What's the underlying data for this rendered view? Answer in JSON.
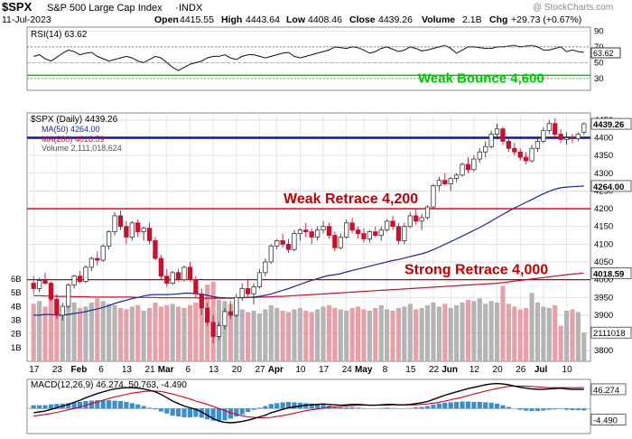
{
  "header": {
    "ticker": "$SPX",
    "name": "S&P 500 Large Cap Index",
    "exchange": "INDX",
    "watermark": "@ StockCharts.com",
    "date": "11-Jul-2023",
    "open_label": "Open",
    "open": "4415.55",
    "high_label": "High",
    "high": "4443.64",
    "low_label": "Low",
    "low": "4408.46",
    "close_label": "Close",
    "close": "4439.26",
    "volume_label": "Volume",
    "volume": "2.1B",
    "chg_label": "Chg",
    "chg": "+29.73 (+0.67%)"
  },
  "colors": {
    "up": "#2e3a3a",
    "down": "#c8102e",
    "ma50": "#1a2a8c",
    "ma200": "#c8102e",
    "blue_line": "#0a14b4",
    "green_line": "#00c800",
    "red_line": "#c00000",
    "grid": "#d8d8d8",
    "vol_up": "#b4b4b4",
    "vol_down": "#e8a0a8",
    "macd_hist": "#3a8ed0"
  },
  "chart_data": [
    {
      "type": "line",
      "panel": "rsi",
      "legend": "RSI(14) 63.62",
      "last_value_label": "63.62",
      "y_ticks": [
        30,
        50,
        70,
        90
      ],
      "y_tick_labels": [
        "30",
        "50",
        "70",
        "90"
      ],
      "ylim": [
        15,
        95
      ],
      "reference_lines": [
        {
          "value": 30,
          "label": ""
        },
        {
          "value": 50,
          "label": ""
        },
        {
          "value": 70,
          "label": ""
        },
        {
          "value": 34,
          "label": "Weak Bounce 4,600",
          "color": "green"
        }
      ],
      "values": [
        58,
        60,
        55,
        52,
        57,
        62,
        66,
        64,
        60,
        62,
        63,
        58,
        55,
        52,
        54,
        56,
        58,
        56,
        52,
        50,
        54,
        58,
        56,
        50,
        44,
        40,
        44,
        48,
        50,
        52,
        56,
        58,
        58,
        60,
        56,
        54,
        58,
        60,
        60,
        58,
        56,
        58,
        60,
        62,
        63,
        58,
        56,
        58,
        60,
        62,
        64,
        66,
        70,
        69,
        68,
        70,
        69,
        66,
        62,
        64,
        68,
        70,
        67,
        64,
        66,
        70,
        68,
        65,
        66,
        68,
        70,
        72,
        68,
        62,
        66,
        70,
        70,
        69,
        68,
        68,
        70,
        70,
        71,
        72,
        70,
        71,
        72,
        70,
        66,
        66,
        68,
        70,
        64,
        66,
        64,
        63
      ]
    },
    {
      "type": "candlestick",
      "panel": "price",
      "legend": [
        "$SPX (Daily) 4439.26",
        "MA(50) 4264.00",
        "MA(200) 4018.59",
        "Volume 2,111,018,624"
      ],
      "ylim": [
        3770,
        4470
      ],
      "y_ticks": [
        3800,
        3850,
        3900,
        3950,
        4000,
        4050,
        4100,
        4150,
        4200,
        4250,
        4300,
        4350,
        4400,
        4450
      ],
      "y_tick_labels": [
        "3800",
        "3850",
        "3900",
        "3950",
        "4000",
        "4050",
        "4100",
        "4150",
        "4200",
        "4250",
        "4300",
        "4350",
        "4400",
        "4450"
      ],
      "x_tick_labels": [
        "17",
        "23",
        "Feb",
        "6",
        "13",
        "21",
        "Mar",
        "6",
        "13",
        "20",
        "27",
        "Apr",
        "10",
        "17",
        "24",
        "May",
        "8",
        "15",
        "22",
        "Jun",
        "12",
        "20",
        "26",
        "Jul",
        "10"
      ],
      "volume_tick_labels": [
        "1B",
        "2B",
        "3B",
        "4B",
        "5B",
        "6B"
      ],
      "volume_range": [
        0,
        6.6
      ],
      "price_label": "4439.26",
      "ma50_label": "4264.00",
      "ma200_label": "4018.59",
      "volume_label": "2111018",
      "horizontal_lines": [
        {
          "value": 4400,
          "color": "blue",
          "label": ""
        },
        {
          "value": 4200,
          "color": "red",
          "label": "Weak Retrace 4,200"
        },
        {
          "value": 4000,
          "color": "red",
          "label": "Strong Retrace 4,000"
        }
      ],
      "ohlc": [
        [
          3990,
          4010,
          3960,
          3975
        ],
        [
          3975,
          4005,
          3965,
          3998
        ],
        [
          3998,
          4020,
          3985,
          3990
        ],
        [
          3990,
          3995,
          3940,
          3945
        ],
        [
          3945,
          3960,
          3890,
          3900
        ],
        [
          3900,
          3935,
          3885,
          3925
        ],
        [
          3925,
          3990,
          3920,
          3985
        ],
        [
          3985,
          4015,
          3975,
          4010
        ],
        [
          4010,
          4025,
          3990,
          3995
        ],
        [
          3995,
          4040,
          3990,
          4035
        ],
        [
          4035,
          4065,
          4025,
          4060
        ],
        [
          4060,
          4080,
          4040,
          4055
        ],
        [
          4055,
          4100,
          4050,
          4095
        ],
        [
          4095,
          4140,
          4085,
          4135
        ],
        [
          4135,
          4190,
          4125,
          4180
        ],
        [
          4180,
          4195,
          4140,
          4150
        ],
        [
          4150,
          4165,
          4100,
          4120
        ],
        [
          4120,
          4165,
          4110,
          4160
        ],
        [
          4160,
          4170,
          4120,
          4135
        ],
        [
          4135,
          4150,
          4110,
          4145
        ],
        [
          4145,
          4160,
          4100,
          4110
        ],
        [
          4110,
          4120,
          4055,
          4060
        ],
        [
          4060,
          4070,
          4000,
          4010
        ],
        [
          4010,
          4030,
          3980,
          3990
        ],
        [
          3990,
          4025,
          3985,
          4020
        ],
        [
          4020,
          4030,
          3995,
          4000
        ],
        [
          4000,
          4040,
          3995,
          4035
        ],
        [
          4035,
          4050,
          3995,
          4000
        ],
        [
          4000,
          4010,
          3950,
          3960
        ],
        [
          3960,
          3975,
          3900,
          3920
        ],
        [
          3920,
          3935,
          3870,
          3880
        ],
        [
          3880,
          3900,
          3820,
          3840
        ],
        [
          3840,
          3880,
          3830,
          3870
        ],
        [
          3870,
          3920,
          3860,
          3910
        ],
        [
          3910,
          3940,
          3890,
          3900
        ],
        [
          3900,
          3960,
          3895,
          3950
        ],
        [
          3950,
          3990,
          3940,
          3975
        ],
        [
          3975,
          4000,
          3950,
          3960
        ],
        [
          3960,
          3990,
          3930,
          3980
        ],
        [
          3980,
          4030,
          3975,
          4020
        ],
        [
          4020,
          4060,
          4010,
          4050
        ],
        [
          4050,
          4100,
          4045,
          4095
        ],
        [
          4095,
          4115,
          4085,
          4110
        ],
        [
          4110,
          4130,
          4090,
          4100
        ],
        [
          4100,
          4115,
          4075,
          4085
        ],
        [
          4085,
          4140,
          4080,
          4130
        ],
        [
          4130,
          4145,
          4110,
          4140
        ],
        [
          4140,
          4160,
          4120,
          4135
        ],
        [
          4135,
          4145,
          4100,
          4120
        ],
        [
          4120,
          4150,
          4110,
          4140
        ],
        [
          4140,
          4165,
          4130,
          4150
        ],
        [
          4150,
          4160,
          4115,
          4125
        ],
        [
          4125,
          4135,
          4080,
          4090
        ],
        [
          4090,
          4130,
          4085,
          4120
        ],
        [
          4120,
          4170,
          4115,
          4160
        ],
        [
          4160,
          4175,
          4130,
          4140
        ],
        [
          4140,
          4150,
          4115,
          4130
        ],
        [
          4130,
          4145,
          4105,
          4115
        ],
        [
          4115,
          4140,
          4105,
          4135
        ],
        [
          4135,
          4150,
          4120,
          4125
        ],
        [
          4125,
          4150,
          4110,
          4140
        ],
        [
          4140,
          4170,
          4135,
          4165
        ],
        [
          4165,
          4180,
          4140,
          4150
        ],
        [
          4150,
          4160,
          4100,
          4110
        ],
        [
          4110,
          4160,
          4100,
          4150
        ],
        [
          4150,
          4190,
          4145,
          4180
        ],
        [
          4180,
          4200,
          4155,
          4165
        ],
        [
          4165,
          4185,
          4140,
          4175
        ],
        [
          4175,
          4210,
          4170,
          4205
        ],
        [
          4205,
          4270,
          4200,
          4265
        ],
        [
          4265,
          4290,
          4250,
          4280
        ],
        [
          4280,
          4300,
          4265,
          4270
        ],
        [
          4270,
          4290,
          4250,
          4285
        ],
        [
          4285,
          4300,
          4275,
          4295
        ],
        [
          4295,
          4330,
          4290,
          4325
        ],
        [
          4325,
          4345,
          4300,
          4310
        ],
        [
          4310,
          4350,
          4305,
          4340
        ],
        [
          4340,
          4370,
          4330,
          4360
        ],
        [
          4360,
          4390,
          4345,
          4375
        ],
        [
          4375,
          4420,
          4370,
          4410
        ],
        [
          4410,
          4440,
          4395,
          4425
        ],
        [
          4425,
          4430,
          4380,
          4390
        ],
        [
          4390,
          4400,
          4360,
          4370
        ],
        [
          4370,
          4385,
          4350,
          4360
        ],
        [
          4360,
          4370,
          4335,
          4345
        ],
        [
          4345,
          4360,
          4325,
          4335
        ],
        [
          4335,
          4380,
          4330,
          4370
        ],
        [
          4370,
          4400,
          4360,
          4390
        ],
        [
          4390,
          4430,
          4385,
          4420
        ],
        [
          4420,
          4450,
          4410,
          4440
        ],
        [
          4440,
          4455,
          4400,
          4410
        ],
        [
          4410,
          4425,
          4385,
          4395
        ],
        [
          4395,
          4415,
          4380,
          4400
        ],
        [
          4400,
          4410,
          4385,
          4398
        ],
        [
          4398,
          4415,
          4390,
          4410
        ],
        [
          4415.55,
          4443.64,
          4408.46,
          4439.26
        ]
      ],
      "ma50": [
        3900,
        3900,
        3902,
        3902,
        3900,
        3900,
        3902,
        3905,
        3907,
        3910,
        3914,
        3918,
        3922,
        3927,
        3933,
        3938,
        3942,
        3947,
        3950,
        3954,
        3957,
        3958,
        3958,
        3958,
        3959,
        3960,
        3962,
        3962,
        3961,
        3959,
        3956,
        3952,
        3950,
        3949,
        3948,
        3949,
        3950,
        3950,
        3951,
        3953,
        3956,
        3960,
        3965,
        3970,
        3975,
        3981,
        3987,
        3993,
        3998,
        4003,
        4008,
        4012,
        4014,
        4017,
        4022,
        4026,
        4030,
        4034,
        4038,
        4042,
        4046,
        4050,
        4054,
        4057,
        4061,
        4065,
        4069,
        4073,
        4078,
        4085,
        4092,
        4100,
        4107,
        4115,
        4123,
        4131,
        4139,
        4147,
        4156,
        4165,
        4175,
        4184,
        4193,
        4202,
        4210,
        4218,
        4226,
        4234,
        4242,
        4249,
        4255,
        4259,
        4261,
        4262,
        4263,
        4264
      ],
      "ma200": [
        3955,
        3955,
        3954,
        3954,
        3953,
        3953,
        3953,
        3952,
        3952,
        3952,
        3951,
        3951,
        3951,
        3951,
        3951,
        3951,
        3951,
        3951,
        3950,
        3950,
        3950,
        3950,
        3949,
        3949,
        3949,
        3949,
        3949,
        3949,
        3949,
        3948,
        3948,
        3948,
        3948,
        3948,
        3948,
        3949,
        3949,
        3950,
        3950,
        3951,
        3951,
        3952,
        3953,
        3953,
        3954,
        3955,
        3956,
        3957,
        3958,
        3959,
        3960,
        3961,
        3962,
        3963,
        3964,
        3965,
        3966,
        3967,
        3968,
        3969,
        3970,
        3971,
        3972,
        3973,
        3974,
        3975,
        3976,
        3977,
        3978,
        3979,
        3980,
        3981,
        3982,
        3983,
        3984,
        3985,
        3986,
        3987,
        3988,
        3989,
        3990,
        3992,
        3994,
        3996,
        3998,
        4000,
        4002,
        4004,
        4006,
        4008,
        4010,
        4012,
        4014,
        4016,
        4017,
        4018.59
      ],
      "volume_b": [
        4.2,
        4.4,
        4.0,
        4.5,
        4.1,
        3.9,
        4.2,
        4.3,
        3.9,
        4.0,
        4.3,
        4.6,
        4.4,
        4.2,
        4.1,
        3.9,
        3.8,
        4.0,
        4.1,
        3.7,
        3.9,
        4.3,
        4.0,
        4.1,
        4.2,
        4.0,
        3.9,
        4.1,
        4.3,
        4.5,
        5.6,
        5.8,
        4.5,
        4.4,
        4.2,
        4.0,
        3.8,
        3.6,
        3.7,
        3.5,
        3.8,
        4.1,
        3.9,
        3.7,
        3.6,
        3.8,
        3.9,
        3.7,
        3.6,
        3.8,
        4.0,
        4.1,
        3.9,
        3.8,
        3.7,
        3.9,
        4.0,
        3.8,
        3.7,
        3.9,
        4.1,
        3.8,
        3.7,
        3.9,
        4.0,
        4.2,
        3.8,
        3.9,
        4.1,
        4.3,
        4.0,
        4.2,
        3.9,
        4.1,
        4.3,
        4.5,
        4.4,
        4.6,
        4.2,
        4.4,
        4.3,
        5.5,
        4.2,
        4.0,
        3.8,
        3.9,
        5.0,
        4.3,
        4.0,
        3.9,
        4.1,
        2.6,
        3.7,
        3.8,
        3.6,
        2.1
      ]
    },
    {
      "type": "line",
      "panel": "macd",
      "legend": "MACD(12,26,9) 46.274, 50.763, -4.490",
      "macd_label": "46.274",
      "hist_label": "-4.490",
      "ylim": [
        -60,
        70
      ],
      "macd": [
        -10,
        -8,
        -6,
        -2,
        2,
        6,
        10,
        15,
        20,
        26,
        31,
        36,
        40,
        44,
        47,
        49,
        50,
        50,
        49,
        47,
        44,
        40,
        34,
        26,
        18,
        12,
        6,
        2,
        -2,
        -8,
        -16,
        -24,
        -30,
        -33,
        -34,
        -33,
        -31,
        -28,
        -24,
        -20,
        -16,
        -10,
        -6,
        -2,
        2,
        4,
        6,
        8,
        9,
        10,
        11,
        10,
        9,
        8,
        9,
        10,
        10,
        9,
        8,
        8,
        9,
        10,
        10,
        9,
        9,
        10,
        12,
        14,
        17,
        22,
        27,
        32,
        36,
        40,
        44,
        48,
        51,
        54,
        57,
        59,
        60,
        59,
        57,
        54,
        51,
        49,
        47,
        46,
        46,
        47,
        48,
        49,
        47,
        46,
        46,
        46.274
      ],
      "signal": [
        -18,
        -16,
        -14,
        -12,
        -9,
        -6,
        -3,
        0,
        4,
        8,
        12,
        16,
        20,
        24,
        28,
        31,
        34,
        37,
        39,
        41,
        42,
        42,
        41,
        38,
        35,
        31,
        27,
        23,
        18,
        14,
        10,
        5,
        0,
        -5,
        -10,
        -14,
        -17,
        -20,
        -21,
        -22,
        -22,
        -21,
        -19,
        -17,
        -14,
        -11,
        -8,
        -5,
        -3,
        -1,
        1,
        3,
        4,
        5,
        6,
        7,
        8,
        8,
        8,
        8,
        8,
        8,
        9,
        9,
        9,
        9,
        9,
        10,
        11,
        13,
        15,
        18,
        21,
        24,
        27,
        31,
        35,
        38,
        42,
        45,
        48,
        51,
        53,
        54,
        54,
        54,
        53,
        52,
        51,
        50,
        50,
        50,
        50,
        50,
        50,
        50.763
      ]
    }
  ]
}
